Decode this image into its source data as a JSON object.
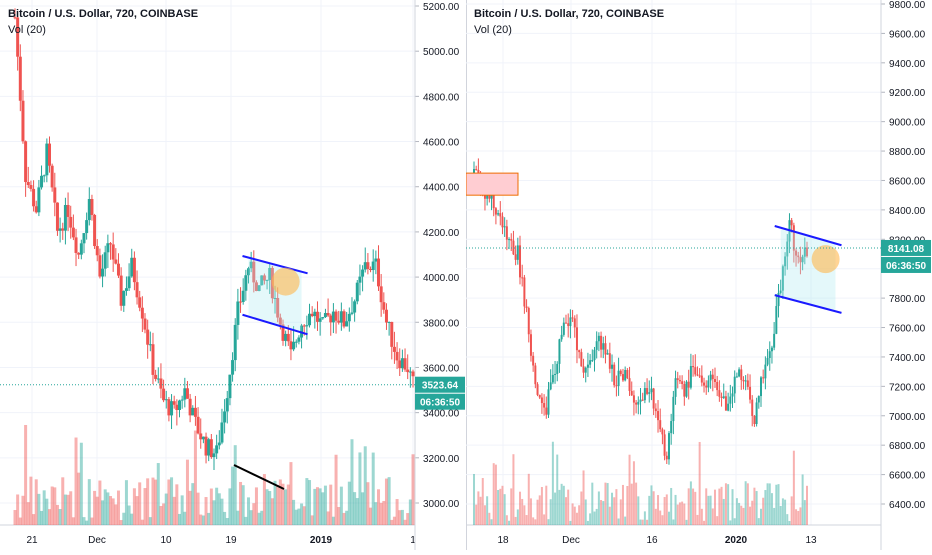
{
  "panes": [
    {
      "symbol_title": "Bitcoin / U.S. Dollar, 720, COINBASE",
      "volume_label": "Vol (20)",
      "y_ticks": [
        "5200.00",
        "5000.00",
        "4800.00",
        "4600.00",
        "4400.00",
        "4200.00",
        "4000.00",
        "3800.00",
        "3600.00",
        "3400.00",
        "3200.00",
        "3000.00"
      ],
      "x_ticks": [
        "21",
        "Dec",
        "10",
        "19",
        "2019",
        "1"
      ],
      "price_badge": "3523.64",
      "countdown_badge": "06:36:50",
      "colors": {
        "up": "#26a69a",
        "down": "#ef5350",
        "trendline": "#1a1aff",
        "badge": "#26a69a"
      }
    },
    {
      "symbol_title": "Bitcoin / U.S. Dollar, 720, COINBASE",
      "volume_label": "Vol (20)",
      "y_ticks": [
        "9800.00",
        "9600.00",
        "9400.00",
        "9200.00",
        "9000.00",
        "8800.00",
        "8600.00",
        "8400.00",
        "8200.00",
        "8000.00",
        "7800.00",
        "7600.00",
        "7400.00",
        "7200.00",
        "7000.00",
        "6800.00",
        "6600.00",
        "6400.00"
      ],
      "x_ticks": [
        "18",
        "Dec",
        "16",
        "2020",
        "13"
      ],
      "price_badge": "8141.08",
      "countdown_badge": "06:36:50",
      "colors": {
        "up": "#26a69a",
        "down": "#ef5350",
        "trendline": "#1a1aff",
        "badge": "#26a69a",
        "target_zone": "#ffcdd2"
      }
    }
  ],
  "chart_data": [
    {
      "type": "candlestick",
      "title": "Bitcoin / U.S. Dollar, 720, COINBASE",
      "ylim": [
        2900,
        5250
      ],
      "series": [
        {
          "name": "Vol (20)",
          "values": []
        }
      ],
      "close_points": [
        [
          0,
          5150
        ],
        [
          4,
          4450
        ],
        [
          8,
          4300
        ],
        [
          12,
          4550
        ],
        [
          16,
          4200
        ],
        [
          20,
          4300
        ],
        [
          24,
          4100
        ],
        [
          28,
          4350
        ],
        [
          32,
          4000
        ],
        [
          36,
          4150
        ],
        [
          40,
          3900
        ],
        [
          44,
          4050
        ],
        [
          48,
          3850
        ],
        [
          52,
          3600
        ],
        [
          56,
          3450
        ],
        [
          60,
          3400
        ],
        [
          64,
          3500
        ],
        [
          68,
          3350
        ],
        [
          72,
          3250
        ],
        [
          76,
          3220
        ],
        [
          80,
          3500
        ],
        [
          84,
          3850
        ],
        [
          88,
          4050
        ],
        [
          92,
          3950
        ],
        [
          96,
          4000
        ],
        [
          100,
          3800
        ],
        [
          104,
          3650
        ],
        [
          108,
          3800
        ],
        [
          112,
          3850
        ],
        [
          116,
          3780
        ],
        [
          120,
          3850
        ],
        [
          124,
          3800
        ],
        [
          128,
          3900
        ],
        [
          132,
          4050
        ],
        [
          136,
          4050
        ],
        [
          140,
          3800
        ],
        [
          144,
          3650
        ],
        [
          148,
          3600
        ],
        [
          150,
          3523.64
        ]
      ],
      "annotations": {
        "last_price": 3523.64,
        "channel_upper": [
          [
            88,
            4080
          ],
          [
            108,
            4030
          ]
        ],
        "channel_lower": [
          [
            88,
            3820
          ],
          [
            108,
            3760
          ]
        ]
      }
    },
    {
      "type": "candlestick",
      "title": "Bitcoin / U.S. Dollar, 720, COINBASE",
      "ylim": [
        6250,
        9900
      ],
      "series": [
        {
          "name": "Vol (20)",
          "values": []
        }
      ],
      "close_points": [
        [
          0,
          8650
        ],
        [
          4,
          8550
        ],
        [
          8,
          8450
        ],
        [
          12,
          8350
        ],
        [
          16,
          8150
        ],
        [
          20,
          8100
        ],
        [
          24,
          7700
        ],
        [
          28,
          7200
        ],
        [
          32,
          7000
        ],
        [
          36,
          7250
        ],
        [
          40,
          7550
        ],
        [
          44,
          7700
        ],
        [
          48,
          7400
        ],
        [
          52,
          7300
        ],
        [
          56,
          7550
        ],
        [
          60,
          7450
        ],
        [
          64,
          7250
        ],
        [
          68,
          7300
        ],
        [
          72,
          7150
        ],
        [
          76,
          7100
        ],
        [
          80,
          7200
        ],
        [
          84,
          6950
        ],
        [
          88,
          6700
        ],
        [
          92,
          7200
        ],
        [
          96,
          7150
        ],
        [
          100,
          7350
        ],
        [
          104,
          7200
        ],
        [
          108,
          7250
        ],
        [
          112,
          7150
        ],
        [
          116,
          7050
        ],
        [
          120,
          7300
        ],
        [
          124,
          7200
        ],
        [
          128,
          6950
        ],
        [
          132,
          7300
        ],
        [
          136,
          7500
        ],
        [
          140,
          7900
        ],
        [
          144,
          8300
        ],
        [
          148,
          8050
        ],
        [
          152,
          8141.08
        ]
      ],
      "annotations": {
        "last_price": 8141.08,
        "channel_upper": [
          [
            140,
            8270
          ],
          [
            165,
            8180
          ]
        ],
        "channel_lower": [
          [
            140,
            7800
          ],
          [
            165,
            7720
          ]
        ],
        "target_zone": [
          8500,
          8650
        ]
      }
    }
  ]
}
